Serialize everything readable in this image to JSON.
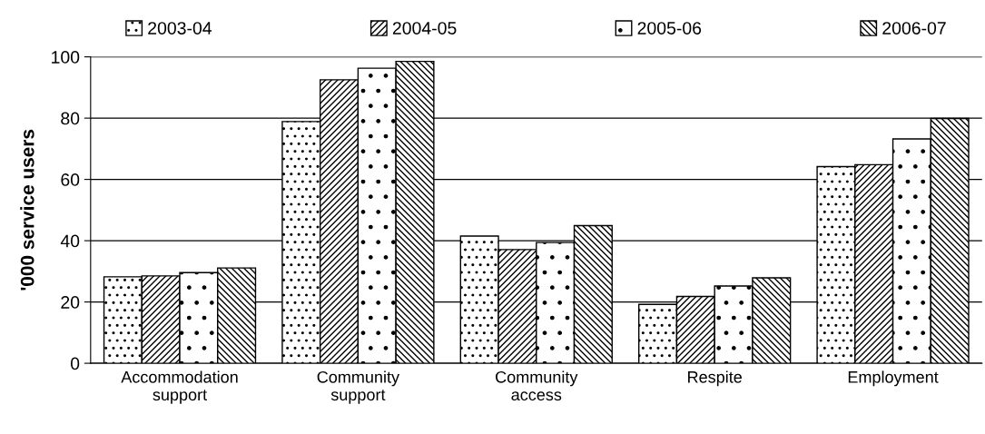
{
  "chart_data": {
    "type": "bar",
    "ylabel": "'000 service users",
    "categories": [
      "Accommodation\nsupport",
      "Community\nsupport",
      "Community\naccess",
      "Respite",
      "Employment"
    ],
    "series": [
      {
        "name": "2003-04",
        "color": "#000000",
        "values": [
          28.2,
          78.9,
          41.5,
          19.2,
          64.2
        ]
      },
      {
        "name": "2004-05",
        "color": "#000000",
        "values": [
          28.5,
          92.5,
          37.1,
          21.8,
          64.8
        ]
      },
      {
        "name": "2005-06",
        "color": "#000000",
        "values": [
          29.6,
          96.3,
          39.4,
          25.2,
          73.2
        ]
      },
      {
        "name": "2006-07",
        "color": "#000000",
        "values": [
          31.1,
          98.5,
          44.9,
          27.9,
          79.9
        ]
      }
    ],
    "ylim": [
      0,
      100
    ],
    "yticks": [
      0,
      20,
      40,
      60,
      80,
      100
    ],
    "grid": "y",
    "legend": "top"
  }
}
